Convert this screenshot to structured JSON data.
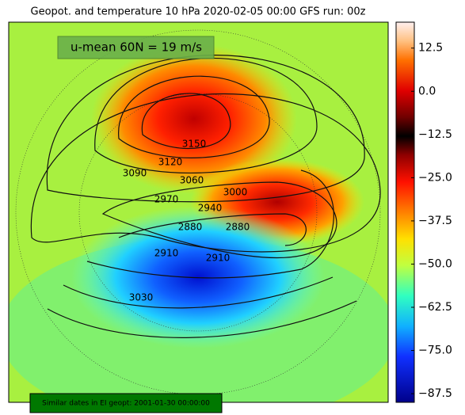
{
  "title": "Geopot. and temperature 10 hPa 2020-02-05 00:00 GFS run: 00z",
  "annotation": "u-mean 60N = 19 m/s",
  "footer": "Similar dates in EI geopt: 2001-01-30 00:00:00",
  "contour_labels": [
    3150,
    3120,
    3090,
    3060,
    3000,
    2970,
    2940,
    2880,
    2880,
    2910,
    2910,
    3030
  ],
  "colorbar": {
    "ylim": [
      -90,
      20
    ],
    "yticks": [
      12.5,
      {
        "value": 0,
        "label": "0.0"
      },
      {
        "value": -12.5,
        "label": "−12.5"
      },
      {
        "value": -25,
        "label": "−25.0"
      },
      {
        "value": -37.5,
        "label": "−37.5"
      },
      {
        "value": -50,
        "label": "−50.0"
      },
      {
        "value": -62.5,
        "label": "−62.5"
      },
      {
        "value": -75,
        "label": "−75.0"
      },
      {
        "value": -87.5,
        "label": "−87.5"
      }
    ]
  }
}
